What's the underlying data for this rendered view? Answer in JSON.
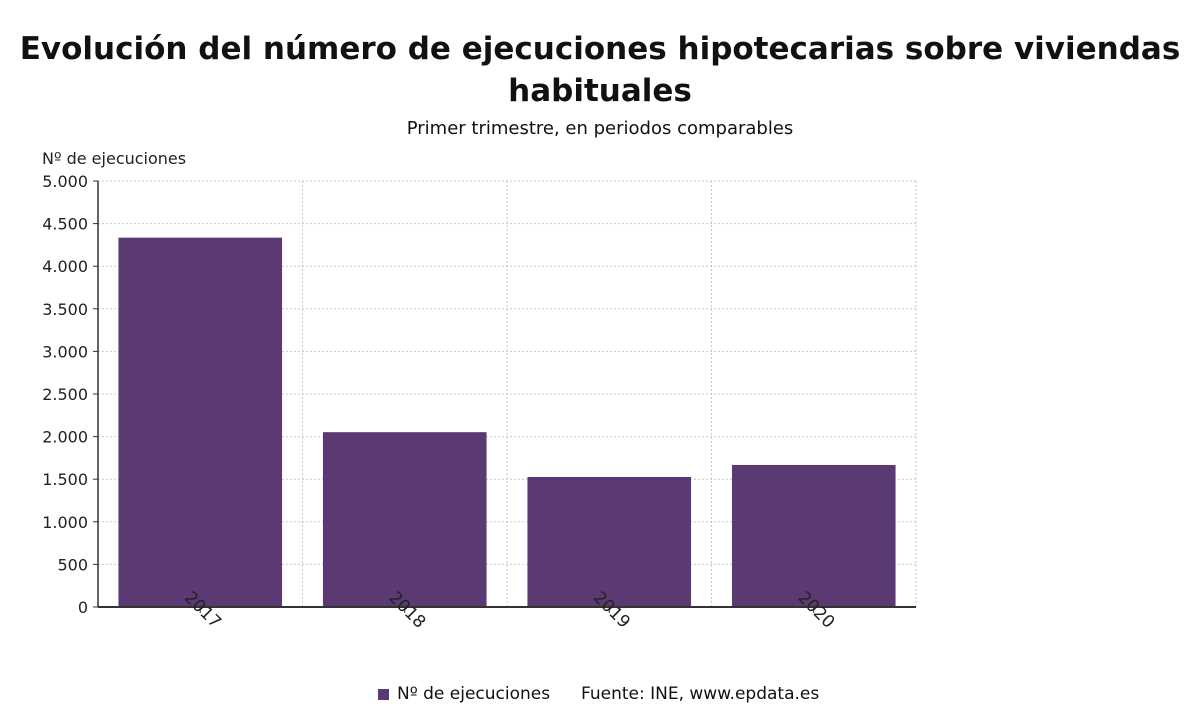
{
  "title": "Evolución del número de ejecuciones hipotecarias sobre viviendas habituales",
  "subtitle": "Primer trimestre, en periodos comparables",
  "footer": {
    "legend_label": "Nº de ejecuciones",
    "source": "Fuente: INE, www.epdata.es"
  },
  "colors": {
    "bar": "#5b3a74",
    "grid": "#c8c8c8",
    "axis": "#333333"
  },
  "chart_data": {
    "type": "bar",
    "title": "Evolución del número de ejecuciones hipotecarias sobre viviendas habituales",
    "subtitle": "Primer trimestre, en periodos comparables",
    "xlabel": "",
    "ylabel": "Nº de ejecuciones",
    "categories": [
      "2017",
      "2018",
      "2019",
      "2020"
    ],
    "series": [
      {
        "name": "Nº de ejecuciones",
        "values": [
          4335,
          2052,
          1526,
          1667
        ]
      }
    ],
    "ylim": [
      0,
      5000
    ],
    "yticks": [
      0,
      500,
      1000,
      1500,
      2000,
      2500,
      3000,
      3500,
      4000,
      4500,
      5000
    ],
    "ytick_labels": [
      "0",
      "500",
      "1.000",
      "1.500",
      "2.000",
      "2.500",
      "3.000",
      "3.500",
      "4.000",
      "4.500",
      "5.000"
    ],
    "grid": true,
    "legend_position": "bottom"
  }
}
